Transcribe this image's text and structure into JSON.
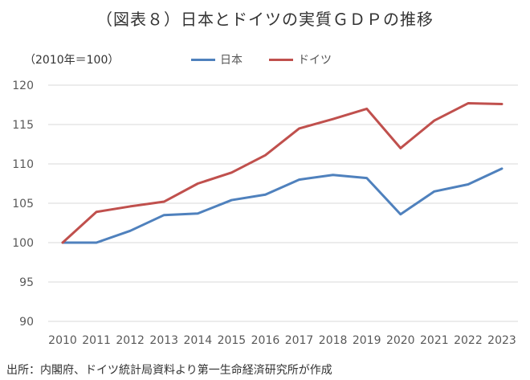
{
  "chart_data": {
    "type": "line",
    "title": "（図表８）日本とドイツの実質ＧＤＰの推移",
    "unit_label": "（2010年＝100）",
    "source": "出所：内閣府、ドイツ統計局資料より第一生命経済研究所が作成",
    "x": [
      "2010",
      "2011",
      "2012",
      "2013",
      "2014",
      "2015",
      "2016",
      "2017",
      "2018",
      "2019",
      "2020",
      "2021",
      "2022",
      "2023"
    ],
    "ylim": [
      90,
      120
    ],
    "yticks": [
      90,
      95,
      100,
      105,
      110,
      115,
      120
    ],
    "grid": true,
    "legend": "top",
    "series": [
      {
        "name": "日本",
        "color": "#4f81bd",
        "values": [
          100,
          100,
          101.5,
          103.5,
          103.7,
          105.4,
          106.1,
          108.0,
          108.6,
          108.2,
          103.6,
          106.5,
          107.4,
          109.4
        ]
      },
      {
        "name": "ドイツ",
        "color": "#c0504d",
        "values": [
          100,
          103.9,
          104.6,
          105.2,
          107.5,
          108.9,
          111.1,
          114.5,
          115.7,
          117.0,
          112.0,
          115.5,
          117.7,
          117.6
        ]
      }
    ]
  }
}
